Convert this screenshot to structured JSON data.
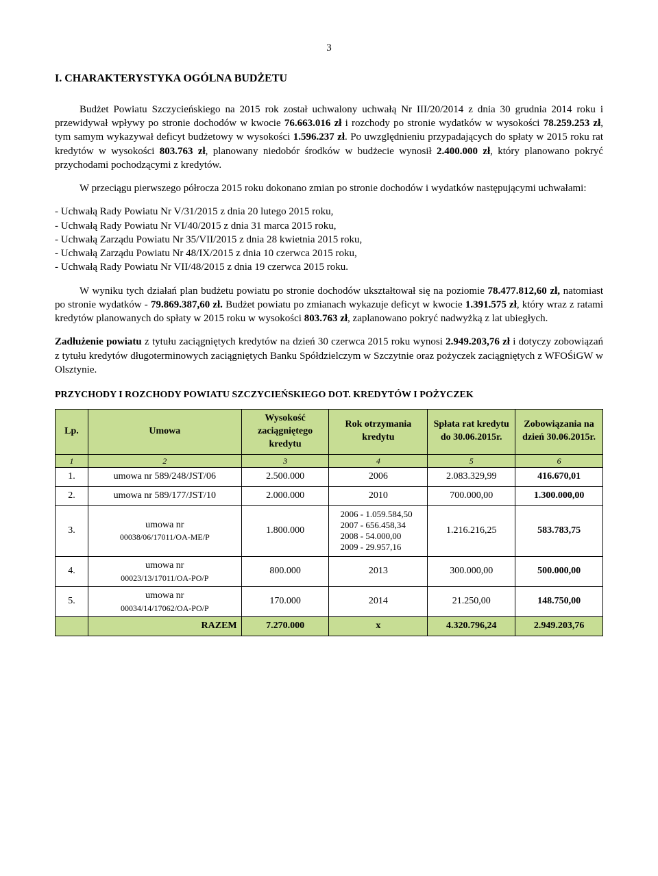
{
  "page_number": "3",
  "heading": "I.  CHARAKTERYSTYKA OGÓLNA BUDŻETU",
  "para1_parts": {
    "t1": "Budżet Powiatu Szczycieńskiego na 2015 rok został uchwalony uchwałą Nr III/20/2014 z dnia 30 grudnia 2014 roku i przewidywał wpływy po stronie dochodów w kwocie ",
    "b1": "76.663.016 zł",
    "t2": " i rozchody po stronie wydatków w wysokości ",
    "b2": "78.259.253 zł",
    "t3": ", tym samym wykazywał deficyt budżetowy w wysokości ",
    "b3": "1.596.237 zł",
    "t4": ". Po uwzględnieniu przypadających do spłaty w 2015 roku rat kredytów w wysokości ",
    "b4": "803.763 zł",
    "t5": ", planowany niedobór środków w budżecie wynosił ",
    "b5": "2.400.000 zł",
    "t6": ", który planowano pokryć przychodami pochodzącymi z kredytów."
  },
  "para2": "W przeciągu pierwszego półrocza 2015 roku dokonano zmian po stronie dochodów i wydatków następującymi uchwałami:",
  "resolutions": [
    "Uchwałą  Rady Powiatu  Nr V/31/2015  z dnia 20 lutego 2015 roku,",
    "Uchwałą  Rady Powiatu  Nr VI/40/2015  z dnia 31 marca 2015 roku,",
    "Uchwałą  Zarządu Powiatu  Nr 35/VII/2015 z dnia 28 kwietnia 2015 roku,",
    "Uchwałą  Zarządu Powiatu  Nr 48/IX/2015 z dnia 10 czerwca 2015 roku,",
    "Uchwałą  Rady Powiatu  Nr VII/48/2015  z dnia 19 czerwca 2015 roku."
  ],
  "para3_parts": {
    "t1": "W wyniku tych działań plan budżetu powiatu po stronie dochodów ukształtował się na poziomie ",
    "b1": "78.477.812,60 zł,",
    "t2": " natomiast po stronie wydatków - ",
    "b2": "79.869.387,60 zł.",
    "t3": " Budżet powiatu po zmianach wykazuje deficyt w kwocie ",
    "b3": "1.391.575 zł",
    "t4": ", który wraz z ratami kredytów planowanych do spłaty w 2015 roku w wysokości ",
    "b4": "803.763 zł",
    "t5": ", zaplanowano pokryć nadwyżką z lat ubiegłych."
  },
  "para4_parts": {
    "b1": "Zadłużenie powiatu",
    "t1": " z tytułu zaciągniętych kredytów na dzień 30 czerwca 2015 roku wynosi ",
    "b2": "2.949.203,76 zł",
    "t2": " i dotyczy zobowiązań z tytułu kredytów długoterminowych zaciągniętych Banku Spółdzielczym w Szczytnie oraz pożyczek zaciągniętych z WFOŚiGW w Olsztynie."
  },
  "table_title": "PRZYCHODY I ROZCHODY POWIATU SZCZYCIEŃSKIEGO DOT. KREDYTÓW I POŻYCZEK",
  "table": {
    "columns": [
      {
        "label": "Lp.",
        "width": "6%"
      },
      {
        "label": "Umowa",
        "width": "28%"
      },
      {
        "label": "Wysokość zaciągniętego kredytu",
        "width": "16%"
      },
      {
        "label": "Rok otrzymania kredytu",
        "width": "18%"
      },
      {
        "label": "Spłata rat kredytu do 30.06.2015r.",
        "width": "16%"
      },
      {
        "label": "Zobowiązania na dzień 30.06.2015r.",
        "width": "16%"
      }
    ],
    "num_row": [
      "1",
      "2",
      "3",
      "4",
      "5",
      "6"
    ],
    "rows": [
      {
        "lp": "1.",
        "umowa": "umowa nr 589/248/JST/06",
        "umowa_sub": "",
        "wys": "2.500.000",
        "rok": "2006",
        "splata": "2.083.329,99",
        "zob": "416.670,01"
      },
      {
        "lp": "2.",
        "umowa": "umowa nr 589/177/JST/10",
        "umowa_sub": "",
        "wys": "2.000.000",
        "rok": "2010",
        "splata": "700.000,00",
        "zob": "1.300.000,00"
      },
      {
        "lp": "3.",
        "umowa": "umowa nr",
        "umowa_sub": "00038/06/17011/OA-ME/P",
        "wys": "1.800.000",
        "rok_multi": [
          "2006 - 1.059.584,50",
          "2007 -    656.458,34",
          "2008 -      54.000,00",
          "2009 -      29.957,16"
        ],
        "splata": "1.216.216,25",
        "zob": "583.783,75"
      },
      {
        "lp": "4.",
        "umowa": "umowa nr",
        "umowa_sub": "00023/13/17011/OA-PO/P",
        "wys": "800.000",
        "rok": "2013",
        "splata": "300.000,00",
        "zob": "500.000,00"
      },
      {
        "lp": "5.",
        "umowa": "umowa nr",
        "umowa_sub": "00034/14/17062/OA-PO/P",
        "wys": "170.000",
        "rok": "2014",
        "splata": "21.250,00",
        "zob": "148.750,00"
      }
    ],
    "total": {
      "label": "RAZEM",
      "wys": "7.270.000",
      "rok": "x",
      "splata": "4.320.796,24",
      "zob": "2.949.203,76"
    },
    "header_bg": "#c7dd94"
  }
}
